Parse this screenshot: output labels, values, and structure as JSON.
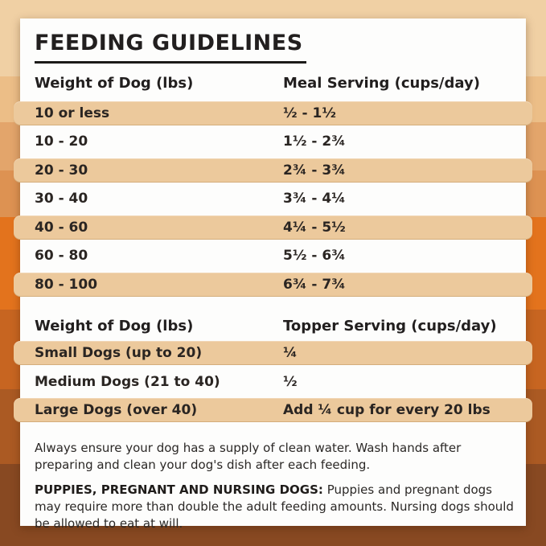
{
  "title": "FEEDING GUIDELINES",
  "meal_table": {
    "weight_header": "Weight of Dog (lbs)",
    "serving_header": "Meal Serving (cups/day)",
    "rows": [
      {
        "weight": "10 or less",
        "serving": "½ - 1½"
      },
      {
        "weight": "10 - 20",
        "serving": "1½ - 2¾"
      },
      {
        "weight": "20 - 30",
        "serving": "2¾ - 3¾"
      },
      {
        "weight": "30 - 40",
        "serving": "3¾ - 4¼"
      },
      {
        "weight": "40 - 60",
        "serving": "4¼ - 5½"
      },
      {
        "weight": "60 - 80",
        "serving": "5½ - 6¾"
      },
      {
        "weight": "80 - 100",
        "serving": "6¾ - 7¾"
      }
    ]
  },
  "topper_table": {
    "weight_header": "Weight of Dog (lbs)",
    "serving_header": "Topper Serving (cups/day)",
    "rows": [
      {
        "weight": "Small Dogs (up to 20)",
        "serving": "¼"
      },
      {
        "weight": "Medium Dogs (21 to 40)",
        "serving": "½"
      },
      {
        "weight": "Large Dogs (over 40)",
        "serving": "Add ¼ cup for every 20 lbs"
      }
    ]
  },
  "notes": {
    "water_note": "Always ensure your dog has a supply of clean water. Wash hands after preparing and clean your dog's dish after each feeding.",
    "special_label": "PUPPIES, PREGNANT AND NURSING DOGS:",
    "special_note": "Puppies and pregnant dogs may require more than double the adult feeding amounts. Nursing dogs should be allowed to eat at will."
  },
  "colors": {
    "row_highlight": "#ecc99c",
    "card_background": "#fdfdfc",
    "text": "#221f1f"
  },
  "background": {
    "stripes": [
      {
        "color": "#f0d0a4",
        "from": 0,
        "to": 95
      },
      {
        "color": "#ecbe87",
        "from": 95,
        "to": 152
      },
      {
        "color": "#e3a56b",
        "from": 152,
        "to": 212
      },
      {
        "color": "#dd9252",
        "from": 212,
        "to": 270
      },
      {
        "color": "#e3731d",
        "from": 270,
        "to": 385
      },
      {
        "color": "#c76521",
        "from": 385,
        "to": 484
      },
      {
        "color": "#ab5a23",
        "from": 484,
        "to": 577
      },
      {
        "color": "#884922",
        "from": 577,
        "to": 679
      }
    ]
  }
}
